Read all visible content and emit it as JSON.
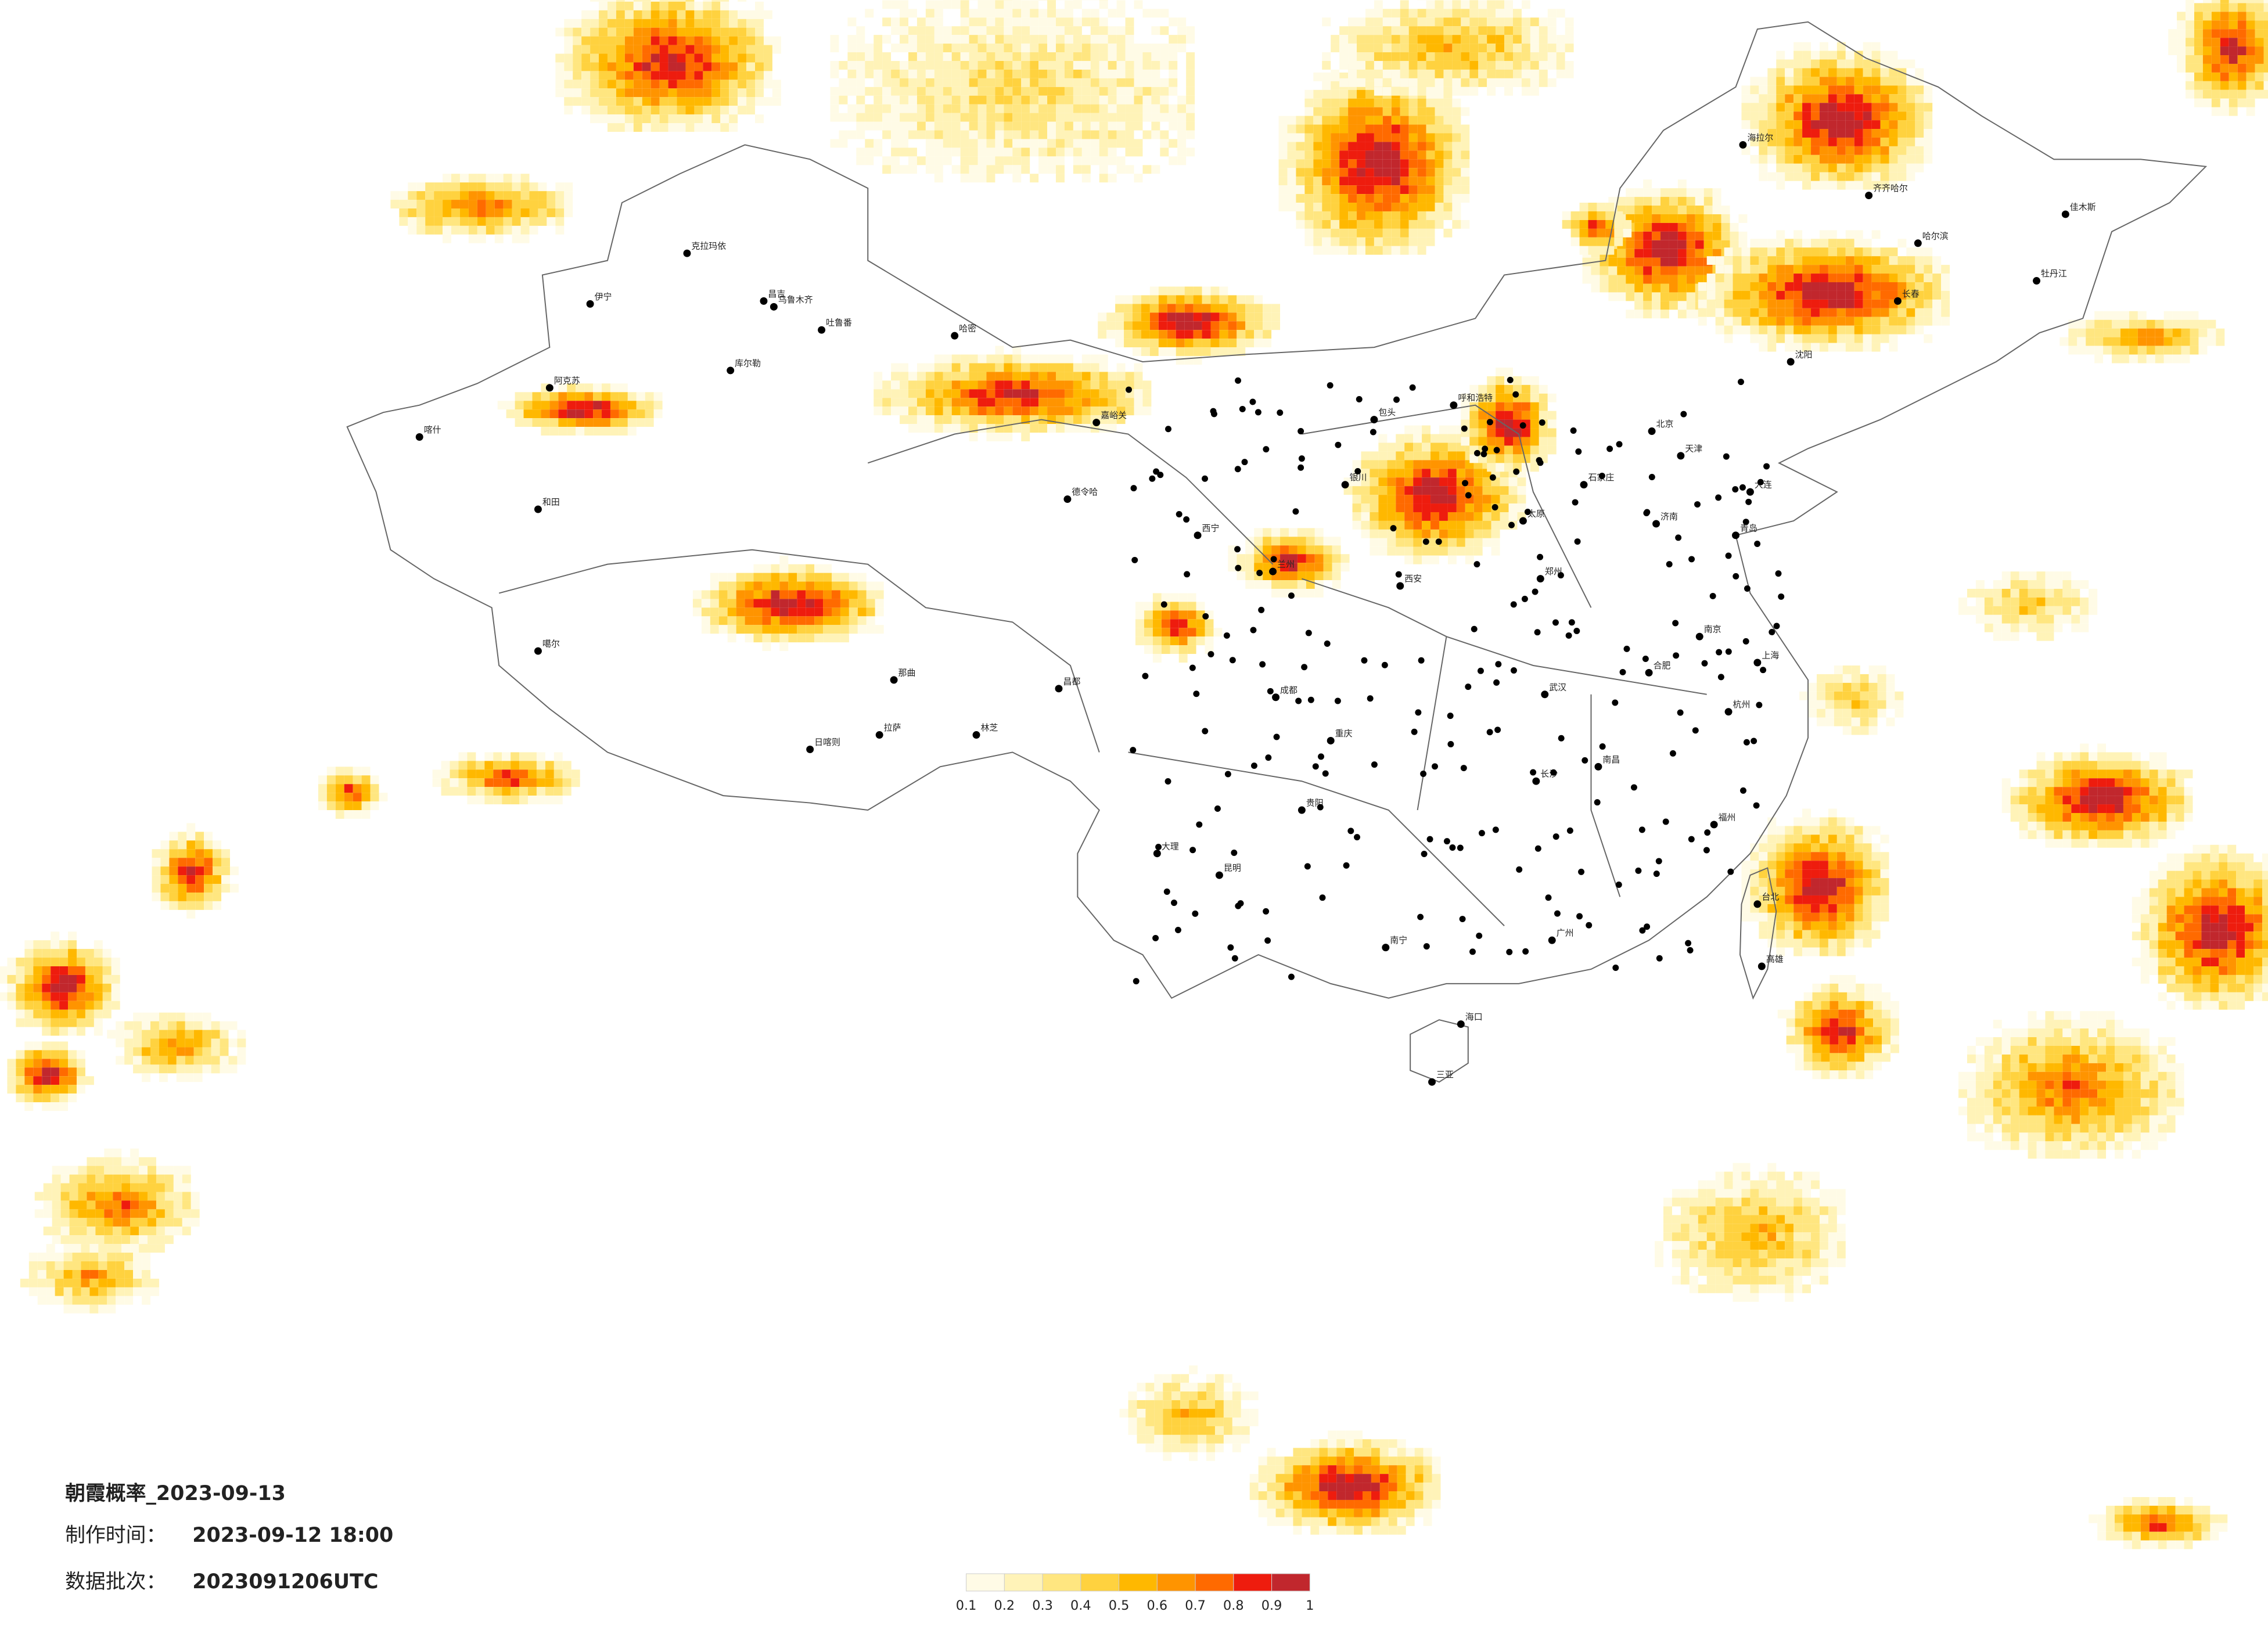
{
  "title": "朝霞概率_2023-09-13",
  "made_time": {
    "label": "制作时间：",
    "value": "2023-09-12 18:00"
  },
  "batch": {
    "label": "数据批次：",
    "value": "2023091206UTC"
  },
  "legend": {
    "colors": [
      "#fffbe6",
      "#fff3b8",
      "#ffe680",
      "#ffd23f",
      "#ffb800",
      "#ff9400",
      "#ff6a00",
      "#ee1c0e",
      "#c1272d"
    ],
    "ticks": [
      0.1,
      0.2,
      0.3,
      0.4,
      0.5,
      0.6,
      0.7,
      0.8,
      0.9,
      1
    ]
  },
  "cities": [
    "克拉玛依",
    "伊宁",
    "昌吉",
    "乌鲁木齐",
    "吐鲁番",
    "哈密",
    "库尔勒",
    "阿克苏",
    "喀什",
    "和田",
    "噶尔",
    "日喀则",
    "拉萨",
    "林芝",
    "那曲",
    "昌都",
    "德令哈",
    "嘉峪关",
    "西宁",
    "兰州",
    "银川",
    "呼和浩特",
    "包头",
    "海拉尔",
    "齐齐哈尔",
    "哈尔滨",
    "佳木斯",
    "牡丹江",
    "长春",
    "沈阳",
    "大连",
    "北京",
    "天津",
    "石家庄",
    "太原",
    "济南",
    "青岛",
    "郑州",
    "西安",
    "成都",
    "重庆",
    "武汉",
    "长沙",
    "南昌",
    "合肥",
    "南京",
    "上海",
    "杭州",
    "福州",
    "台北",
    "高雄",
    "广州",
    "南宁",
    "海口",
    "三亚",
    "昆明",
    "贵阳",
    "大理"
  ]
}
